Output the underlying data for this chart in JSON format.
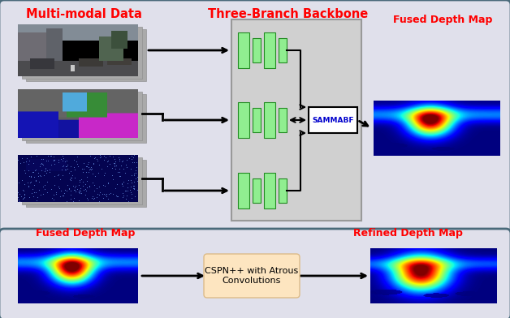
{
  "top_box_bg": "#e0e0eb",
  "top_box_border": "#4a6a7a",
  "bottom_box_bg": "#e0e0eb",
  "bottom_box_border": "#4a6a7a",
  "backbone_box_bg": "#cccccc",
  "backbone_box_border": "#999999",
  "bar_fill": "#90ee90",
  "bar_edge": "#228B22",
  "sammabf_box_bg": "#ffffff",
  "sammabf_box_border": "#000000",
  "sammabf_text_color": "#0000cc",
  "cspn_box_bg": "#fde5c0",
  "cspn_box_border": "#ddbb88",
  "title_color_red": "#ff0000",
  "title1": "Multi-modal Data",
  "title2": "Three-Branch Backbone",
  "title3": "Fused Depth Map",
  "title4": "Fused Depth Map",
  "title5": "Refined Depth Map",
  "cspn_text": "CSPN++ with Atrous\nConvolutions",
  "sammabf_text": "SAMMABF",
  "fig_w": 6.28,
  "fig_h": 3.92,
  "dpi": 100
}
